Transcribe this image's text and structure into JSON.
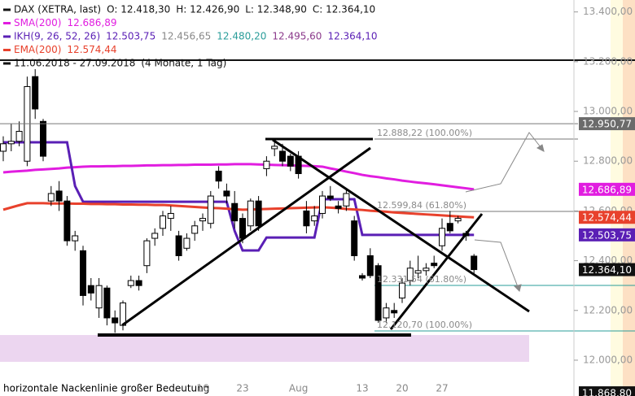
{
  "chart_data": {
    "type": "candlestick",
    "header": {
      "instrument": "DAX (XETRA, last)",
      "quote": [
        "O: 12.418,30",
        "H: 12.426,90",
        "L: 12.348,90",
        "C: 12.364,10"
      ],
      "period": "11.06.2018 - 27.09.2018",
      "period_note": "(4 Monate, 1 Tag)"
    },
    "categories": [
      null,
      null,
      null,
      null,
      null,
      null,
      null,
      null,
      null,
      null,
      null,
      null,
      null,
      null,
      null,
      null,
      null,
      null,
      null,
      null,
      null,
      null,
      null,
      null,
      null,
      "16",
      null,
      null,
      null,
      null,
      "23",
      null,
      null,
      null,
      null,
      null,
      null,
      "Aug",
      null,
      null,
      null,
      null,
      null,
      null,
      null,
      "13",
      null,
      null,
      null,
      null,
      "20",
      null,
      null,
      null,
      null,
      "27",
      null,
      null,
      null,
      null
    ],
    "open": [
      12840,
      12870,
      12880,
      12800,
      13140,
      12960,
      12640,
      12680,
      12640,
      12480,
      12440,
      12300,
      12210,
      12290,
      12170,
      12140,
      12300,
      12320,
      12380,
      12490,
      12530,
      12570,
      12500,
      12450,
      12510,
      12560,
      12550,
      12760,
      12680,
      12630,
      12570,
      12540,
      12640,
      12770,
      12850,
      12840,
      12820,
      12820,
      12600,
      12560,
      12590,
      12660,
      12620,
      12620,
      12560,
      12340,
      12420,
      12380,
      12170,
      12200,
      12250,
      12320,
      12350,
      12360,
      12390,
      12460,
      12550,
      12560,
      12510,
      12418.3
    ],
    "high": [
      12900,
      12950,
      12960,
      13140,
      13170,
      12970,
      12700,
      12720,
      12660,
      12520,
      12460,
      12330,
      12330,
      12300,
      12200,
      12240,
      12340,
      12340,
      12490,
      12530,
      12600,
      12620,
      12520,
      12510,
      12560,
      12590,
      12680,
      12780,
      12710,
      12680,
      12590,
      12650,
      12660,
      12820,
      12880,
      12870,
      12830,
      12840,
      12640,
      12620,
      12680,
      12700,
      12640,
      12690,
      12580,
      12350,
      12450,
      12390,
      12230,
      12230,
      12330,
      12400,
      12420,
      12390,
      12420,
      12570,
      12600,
      12580,
      12520,
      12426.9
    ],
    "low": [
      12800,
      12840,
      12860,
      12780,
      12970,
      12800,
      12620,
      12600,
      12460,
      12440,
      12220,
      12240,
      12170,
      12140,
      12110,
      12120,
      12290,
      12280,
      12350,
      12460,
      12500,
      12520,
      12400,
      12440,
      12480,
      12520,
      12530,
      12690,
      12630,
      12530,
      12470,
      12520,
      12520,
      12740,
      12820,
      12780,
      12760,
      12730,
      12510,
      12540,
      12570,
      12640,
      12590,
      12600,
      12400,
      12320,
      12330,
      12150,
      12150,
      12170,
      12230,
      12300,
      12330,
      12340,
      12370,
      12440,
      12510,
      12550,
      12480,
      12348.9
    ],
    "close": [
      12870,
      12880,
      12920,
      13100,
      13010,
      12820,
      12670,
      12640,
      12480,
      12500,
      12260,
      12270,
      12300,
      12170,
      12150,
      12230,
      12320,
      12300,
      12480,
      12510,
      12580,
      12590,
      12420,
      12490,
      12540,
      12570,
      12660,
      12720,
      12660,
      12560,
      12490,
      12640,
      12540,
      12800,
      12860,
      12800,
      12780,
      12750,
      12540,
      12580,
      12660,
      12650,
      12610,
      12670,
      12420,
      12330,
      12340,
      12160,
      12210,
      12190,
      12310,
      12370,
      12360,
      12370,
      12380,
      12530,
      12520,
      12570,
      12500,
      12364.1
    ],
    "series": [
      {
        "name": "SMA(200)",
        "color": "#e11de0",
        "legend_values": [
          "12.686,89"
        ],
        "legend_colors": [
          "#e11de0"
        ],
        "values": [
          12755,
          12758,
          12760,
          12762,
          12765,
          12767,
          12769,
          12771,
          12774,
          12776,
          12778,
          12779,
          12779,
          12780,
          12780,
          12781,
          12781,
          12782,
          12783,
          12783,
          12784,
          12784,
          12785,
          12785,
          12786,
          12786,
          12786,
          12787,
          12787,
          12788,
          12788,
          12788,
          12787,
          12786,
          12785,
          12784,
          12783,
          12782,
          12781,
          12780,
          12778,
          12771,
          12765,
          12758,
          12752,
          12745,
          12740,
          12736,
          12731,
          12727,
          12722,
          12718,
          12714,
          12711,
          12707,
          12703,
          12699,
          12695,
          12691,
          12686.89
        ]
      },
      {
        "name": "IKH(9, 26, 52, 26)",
        "color": "#5a1fb5",
        "legend_values": [
          "12.503,75",
          "12.456,65",
          "12.480,20",
          "12.495,60",
          "12.364,10"
        ],
        "legend_colors": [
          "#5a1fb5",
          "#888888",
          "#2a9d9a",
          "#8b3a8b",
          "#5a1fb5"
        ],
        "values": [
          12876,
          12876,
          12876,
          12876,
          12876,
          12876,
          12876,
          12876,
          12876,
          12700,
          12637,
          12637,
          12637,
          12637,
          12637,
          12637,
          12637,
          12637,
          12637,
          12637,
          12637,
          12637,
          12637,
          12637,
          12637,
          12637,
          12637,
          12637,
          12637,
          12520,
          12441,
          12441,
          12441,
          12493,
          12493,
          12493,
          12493,
          12493,
          12493,
          12493,
          12647,
          12647,
          12647,
          12647,
          12647,
          12503.75,
          12503.75,
          12503.75,
          12503.75,
          12503.75,
          12503.75,
          12503.75,
          12503.75,
          12503.75,
          12503.75,
          12503.75,
          12503.75,
          12503.75,
          12503.75,
          12503.75
        ]
      },
      {
        "name": "EMA(200)",
        "color": "#e8412c",
        "legend_values": [
          "12.574,44"
        ],
        "legend_colors": [
          "#e8412c"
        ],
        "values": [
          12605,
          12614,
          12623,
          12631,
          12631,
          12631,
          12630,
          12630,
          12630,
          12629,
          12629,
          12628,
          12628,
          12627,
          12627,
          12626,
          12626,
          12625,
          12625,
          12624,
          12624,
          12622,
          12620,
          12618,
          12616,
          12614,
          12612,
          12611,
          12609,
          12607,
          12605,
          12606,
          12607,
          12608,
          12609,
          12610,
          12611,
          12612,
          12613,
          12614,
          12615,
          12613,
          12611,
          12608,
          12606,
          12604,
          12601,
          12599,
          12597,
          12594,
          12592,
          12590,
          12588,
          12586,
          12584,
          12582,
          12580,
          12578,
          12576,
          12574.44
        ]
      }
    ],
    "ylim": [
      11856,
      13448
    ],
    "yticks": [
      {
        "value": 13400,
        "label": "13.400,00"
      },
      {
        "value": 13200,
        "label": "13.200,00"
      },
      {
        "value": 13000,
        "label": "13.000,00"
      },
      {
        "value": 12800,
        "label": "12.800,00"
      },
      {
        "value": 12600,
        "label": "12.600,00"
      },
      {
        "value": 12400,
        "label": "12.400,00"
      },
      {
        "value": 12200,
        "label": "12.200,00"
      },
      {
        "value": 12000,
        "label": "12.000,00"
      }
    ],
    "price_badges": [
      {
        "value": 12950.77,
        "label": "12.950,77",
        "color": "#6b6b6b"
      },
      {
        "value": 12686.89,
        "label": "12.686,89",
        "color": "#e11de0"
      },
      {
        "value": 12574.44,
        "label": "12.574,44",
        "color": "#e8412c"
      },
      {
        "value": 12503.75,
        "label": "12.503,75",
        "color": "#5a1fb5"
      },
      {
        "value": 12364.1,
        "label": "12.364,10",
        "color": "#111111"
      },
      {
        "value": 11868.8,
        "label": "11.868,80",
        "color": "#111111"
      }
    ],
    "annotations": {
      "fib": [
        "12.888,22 (100.00%)",
        "12.599,84 (61.80%)",
        "12.331,54 (61.80%)",
        "12.120,70 (100.00%)"
      ],
      "note": "horizontale Nackenlinie großer Bedeutung"
    }
  }
}
